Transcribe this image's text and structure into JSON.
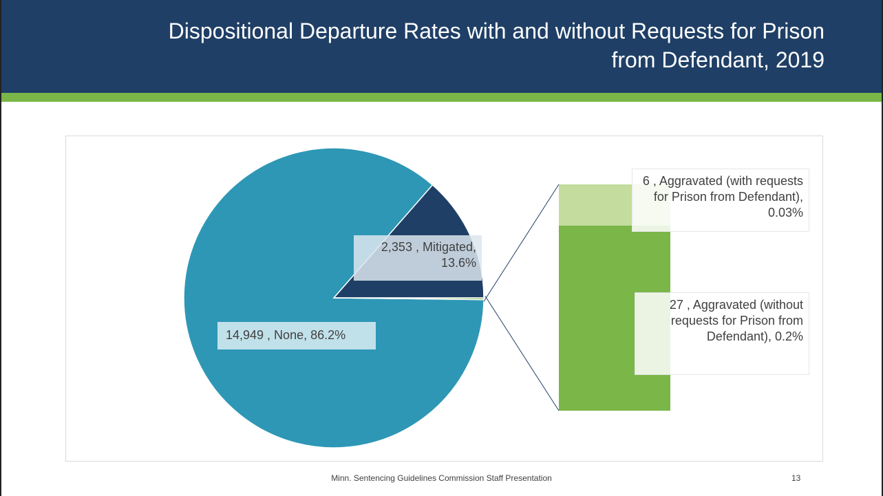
{
  "header": {
    "title": "Dispositional Departure Rates with and without Requests for Prison from Defendant, 2019"
  },
  "chart_data": {
    "type": "pie-of-bar",
    "categories": [
      "None",
      "Mitigated",
      "Aggravated (with requests for Prison from Defendant)",
      "Aggravated (without requests for Prison from Defendant)"
    ],
    "values": [
      14949,
      2353,
      6,
      27
    ],
    "data_labels": [
      "14,949 , None, 86.2%",
      "2,353 , Mitigated, 13.6%",
      "6 , Aggravated (with requests for Prison from Defendant), 0.03%",
      "27 , Aggravated (without requests for Prison from Defendant), 0.2%"
    ],
    "colors": [
      "#2e97b5",
      "#1f3f66",
      "#c4dc9d",
      "#7ab648"
    ],
    "pie_indices": [
      0,
      1
    ],
    "bar_indices": [
      2,
      3
    ]
  },
  "footer": {
    "text": "Minn. Sentencing Guidelines Commission Staff Presentation",
    "page_number": "13"
  }
}
